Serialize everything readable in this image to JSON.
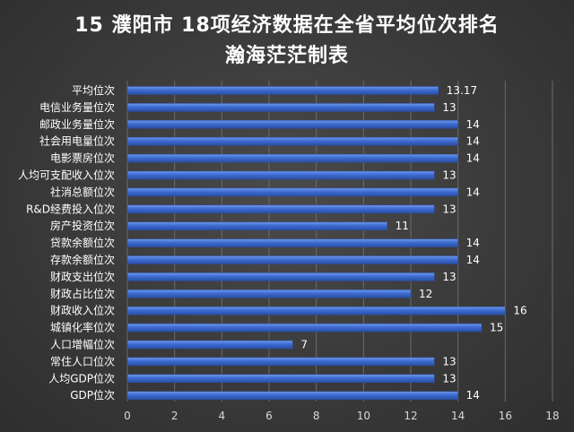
{
  "chart_data": {
    "type": "bar",
    "orientation": "horizontal",
    "title": "15 濮阳市  18项经济数据在全省平均位次排名",
    "subtitle": "瀚海茫茫制表",
    "categories": [
      "平均位次",
      "电信业务量位次",
      "邮政业务量位次",
      "社会用电量位次",
      "电影票房位次",
      "人均可支配收入位次",
      "社消总额位次",
      "R&D经费投入位次",
      "房产投资位次",
      "贷款余额位次",
      "存款余额位次",
      "财政支出位次",
      "财政占比位次",
      "财政收入位次",
      "城镇化率位次",
      "人口增幅位次",
      "常住人口位次",
      "人均GDP位次",
      "GDP位次"
    ],
    "values": [
      13.17,
      13,
      14,
      14,
      14,
      13,
      14,
      13,
      11,
      14,
      14,
      13,
      12,
      16,
      15,
      7,
      13,
      13,
      14
    ],
    "value_labels": [
      "13.17",
      "13",
      "14",
      "14",
      "14",
      "13",
      "14",
      "13",
      "11",
      "14",
      "14",
      "13",
      "12",
      "16",
      "15",
      "7",
      "13",
      "13",
      "14"
    ],
    "xlim": [
      0,
      18
    ],
    "xticks": [
      "0",
      "2",
      "4",
      "6",
      "8",
      "10",
      "12",
      "14",
      "16",
      "18"
    ],
    "grid": true,
    "bar_color": "#3f6fd1"
  }
}
